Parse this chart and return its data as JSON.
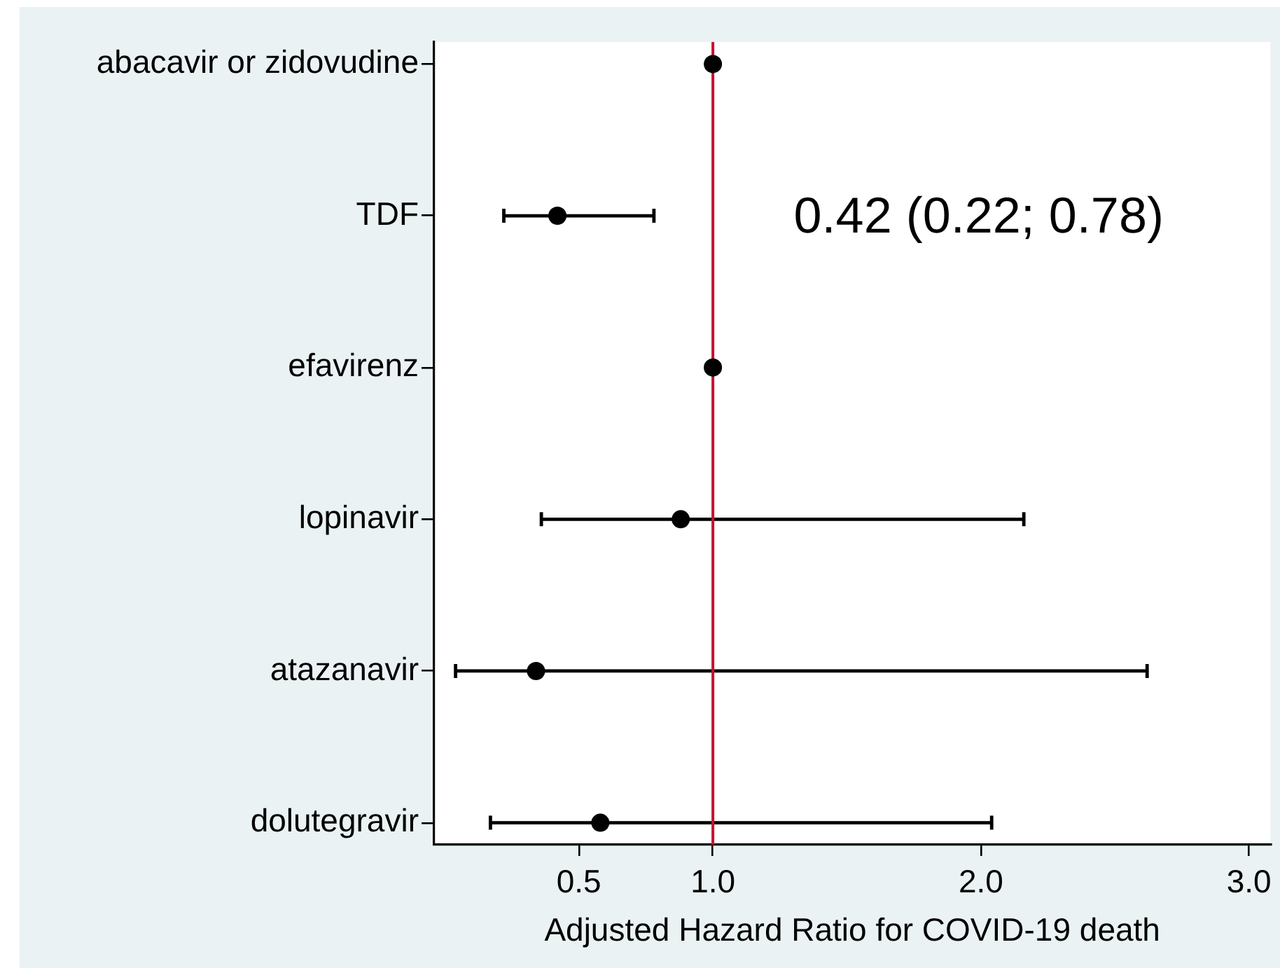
{
  "chart_data": {
    "type": "scatter",
    "orientation": "horizontal",
    "xlabel": "Adjusted Hazard Ratio for COVID-19 death",
    "categories": [
      "abacavir or zidovudine",
      "TDF",
      "efavirenz",
      "lopinavir",
      "atazanavir",
      "dolutegravir"
    ],
    "values": [
      1,
      0.42,
      1,
      0.88,
      0.34,
      0.58
    ],
    "errors": [
      null,
      [
        0.22,
        0.78
      ],
      null,
      [
        0.36,
        2.16
      ],
      [
        0.04,
        2.62
      ],
      [
        0.17,
        2.04
      ]
    ],
    "color": "#000000",
    "marker": "circle",
    "xlim": [
      -0.04,
      3.08
    ],
    "xticks": [
      0.5,
      {
        "value": 1,
        "label": "1.0"
      },
      {
        "value": 2,
        "label": "2.0"
      },
      {
        "value": 3,
        "label": "3.0"
      }
    ],
    "ref_lines": [
      {
        "axis": "x",
        "value": 1,
        "color": "#c8102e"
      }
    ],
    "annotations": [
      "0.42 (0.22; 0.78)"
    ],
    "grid": false,
    "legend": false
  }
}
